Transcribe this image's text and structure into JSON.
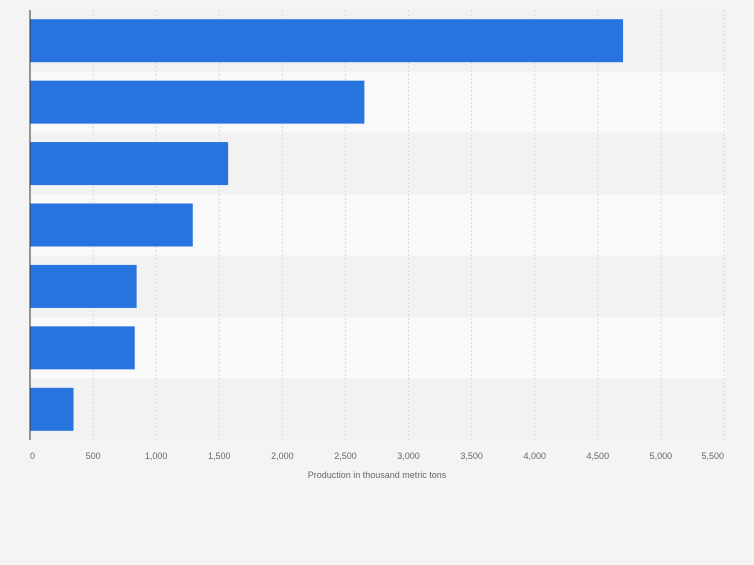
{
  "chart_data": {
    "type": "bar",
    "orientation": "horizontal",
    "title": "",
    "categories": [
      "",
      "",
      "",
      "",
      "",
      "",
      ""
    ],
    "values": [
      4700,
      2650,
      1570,
      1290,
      845,
      830,
      345
    ],
    "xlabel": "Production in thousand metric tons",
    "ylabel": "",
    "xlim": [
      0,
      5500
    ],
    "ticks": [
      0,
      500,
      1000,
      1500,
      2000,
      2500,
      3000,
      3500,
      4000,
      4500,
      5000,
      5500
    ],
    "tick_labels": [
      "0",
      "500",
      "1,000",
      "1,500",
      "2,000",
      "2,500",
      "3,000",
      "3,500",
      "4,000",
      "4,500",
      "5,000",
      "5,500"
    ],
    "grid": true,
    "colors": {
      "bar": "#2874de",
      "band_dark": "#f2f2f2",
      "band_light": "#f9f9f9",
      "grid": "#d9d9d9",
      "axis": "#333333",
      "tick_text": "#666666",
      "label_text": "#666666"
    }
  }
}
